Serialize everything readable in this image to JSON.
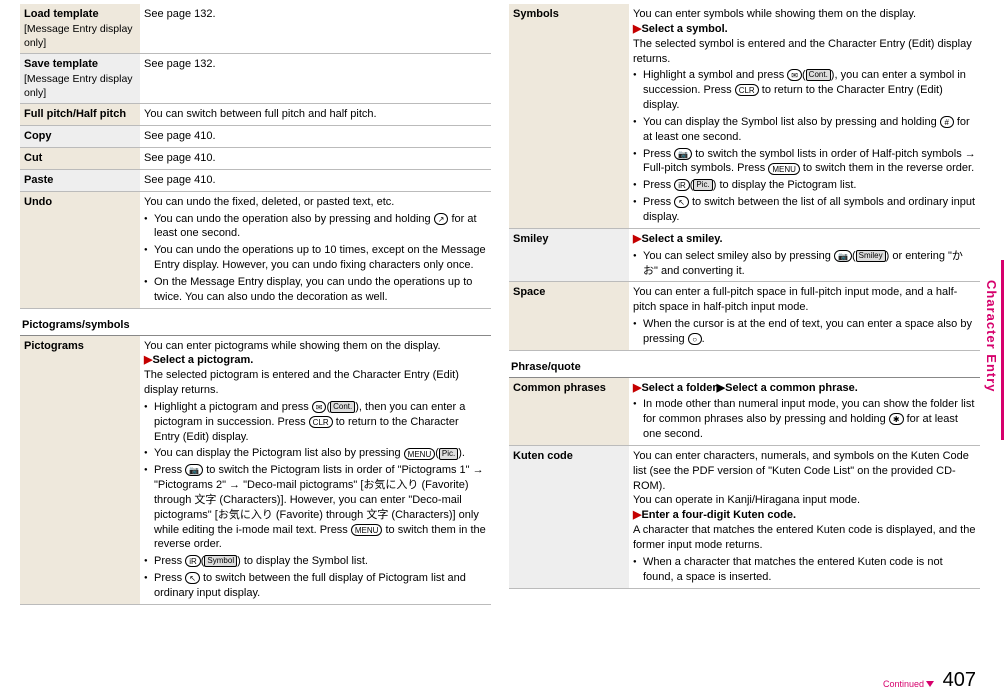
{
  "leftTop": [
    {
      "label": "Load template",
      "sub": "[Message Entry display only]",
      "beige": true,
      "desc": "See page 132."
    },
    {
      "label": "Save template",
      "sub": "[Message Entry display only]",
      "beige": false,
      "desc": "See page 132."
    },
    {
      "label": "Full pitch/Half pitch",
      "beige": true,
      "desc": "You can switch between full pitch and half pitch."
    },
    {
      "label": "Copy",
      "beige": false,
      "desc": "See page 410."
    },
    {
      "label": "Cut",
      "beige": true,
      "desc": "See page 410."
    },
    {
      "label": "Paste",
      "beige": false,
      "desc": "See page 410."
    }
  ],
  "undo": {
    "label": "Undo",
    "intro": "You can undo the fixed, deleted, or pasted text, etc.",
    "bullets": [
      "You can undo the operation also by pressing and holding |KEY:↗| for at least one second.",
      "You can undo the operations up to 10 times, except on the Message Entry display. However, you can undo fixing characters only once.",
      "On the Message Entry display, you can undo the operations up to twice. You can also undo the decoration as well."
    ]
  },
  "picto_head": "Pictograms/symbols",
  "pictograms": {
    "label": "Pictograms",
    "intro": "You can enter pictograms while showing them on the display.",
    "action": "Select a pictogram.",
    "after": "The selected pictogram is entered and the Character Entry (Edit) display returns.",
    "bullets": [
      "Highlight a pictogram and press |KEY:✉|(|SK:Cont.|), then you can enter a pictogram in succession. Press |KEY:CLR| to return to the Character Entry (Edit) display.",
      "You can display the Pictogram list also by pressing |KEY:MENU|(|SK:Pic.|).",
      "Press |KEY:📷| to switch the Pictogram lists in order of \"Pictograms 1\" → \"Pictograms 2\" → \"Deco-mail pictograms\" [お気に入り (Favorite) through 文字 (Characters)]. However, you can enter \"Deco-mail pictograms\" [お気に入り (Favorite) through 文字 (Characters)] only while editing the i-mode mail text. Press |KEY:MENU| to switch them in the reverse order.",
      "Press |KEY:iR|(|SK:Symbol|) to display the Symbol list.",
      "Press |KEY:↖| to switch between the full display of Pictogram list and ordinary input display."
    ]
  },
  "symbols": {
    "label": "Symbols",
    "intro": "You can enter symbols while showing them on the display.",
    "action": "Select a symbol.",
    "after": "The selected symbol is entered and the Character Entry (Edit) display returns.",
    "bullets": [
      "Highlight a symbol and press |KEY:✉|(|SK:Cont.|), you can enter a symbol in succession. Press |KEY:CLR| to return to the Character Entry (Edit) display.",
      "You can display the Symbol list also by pressing and holding |KEY:#| for at least one second.",
      "Press |KEY:📷| to switch the symbol lists in order of Half-pitch symbols → Full-pitch symbols. Press |KEY:MENU| to switch them in the reverse order.",
      "Press |KEY:iR|(|SK:Pic.|) to display the Pictogram list.",
      "Press |KEY:↖| to switch between the list of all symbols and ordinary input display."
    ]
  },
  "smiley": {
    "label": "Smiley",
    "action": "Select a smiley.",
    "bullets": [
      "You can select smiley also by pressing |KEY:📷|(|SK:Smiley|) or entering \"かお\" and converting it."
    ]
  },
  "space": {
    "label": "Space",
    "intro": "You can enter a full-pitch space in full-pitch input mode, and a half-pitch space in half-pitch input mode.",
    "bullets": [
      "When the cursor is at the end of text, you can enter a space also by pressing |KEY:○|."
    ]
  },
  "phrase_head": "Phrase/quote",
  "common": {
    "label": "Common phrases",
    "action": "Select a folder▶Select a common phrase.",
    "bullets": [
      "In mode other than numeral input mode, you can show the folder list for common phrases also by pressing and holding |KEY:✱| for at least one second."
    ]
  },
  "kuten": {
    "label": "Kuten code",
    "intro": "You can enter characters, numerals, and symbols on the Kuten Code list (see the PDF version of \"Kuten Code List\" on the provided CD-ROM).\nYou can operate in Kanji/Hiragana input mode.",
    "action": "Enter a four-digit Kuten code.",
    "after": "A character that matches the entered Kuten code is displayed, and the former input mode returns.",
    "bullets": [
      "When a character that matches the entered Kuten code is not found, a space is inserted."
    ]
  },
  "sideLabel": "Character Entry",
  "continued": "Continued",
  "pageNum": "407"
}
